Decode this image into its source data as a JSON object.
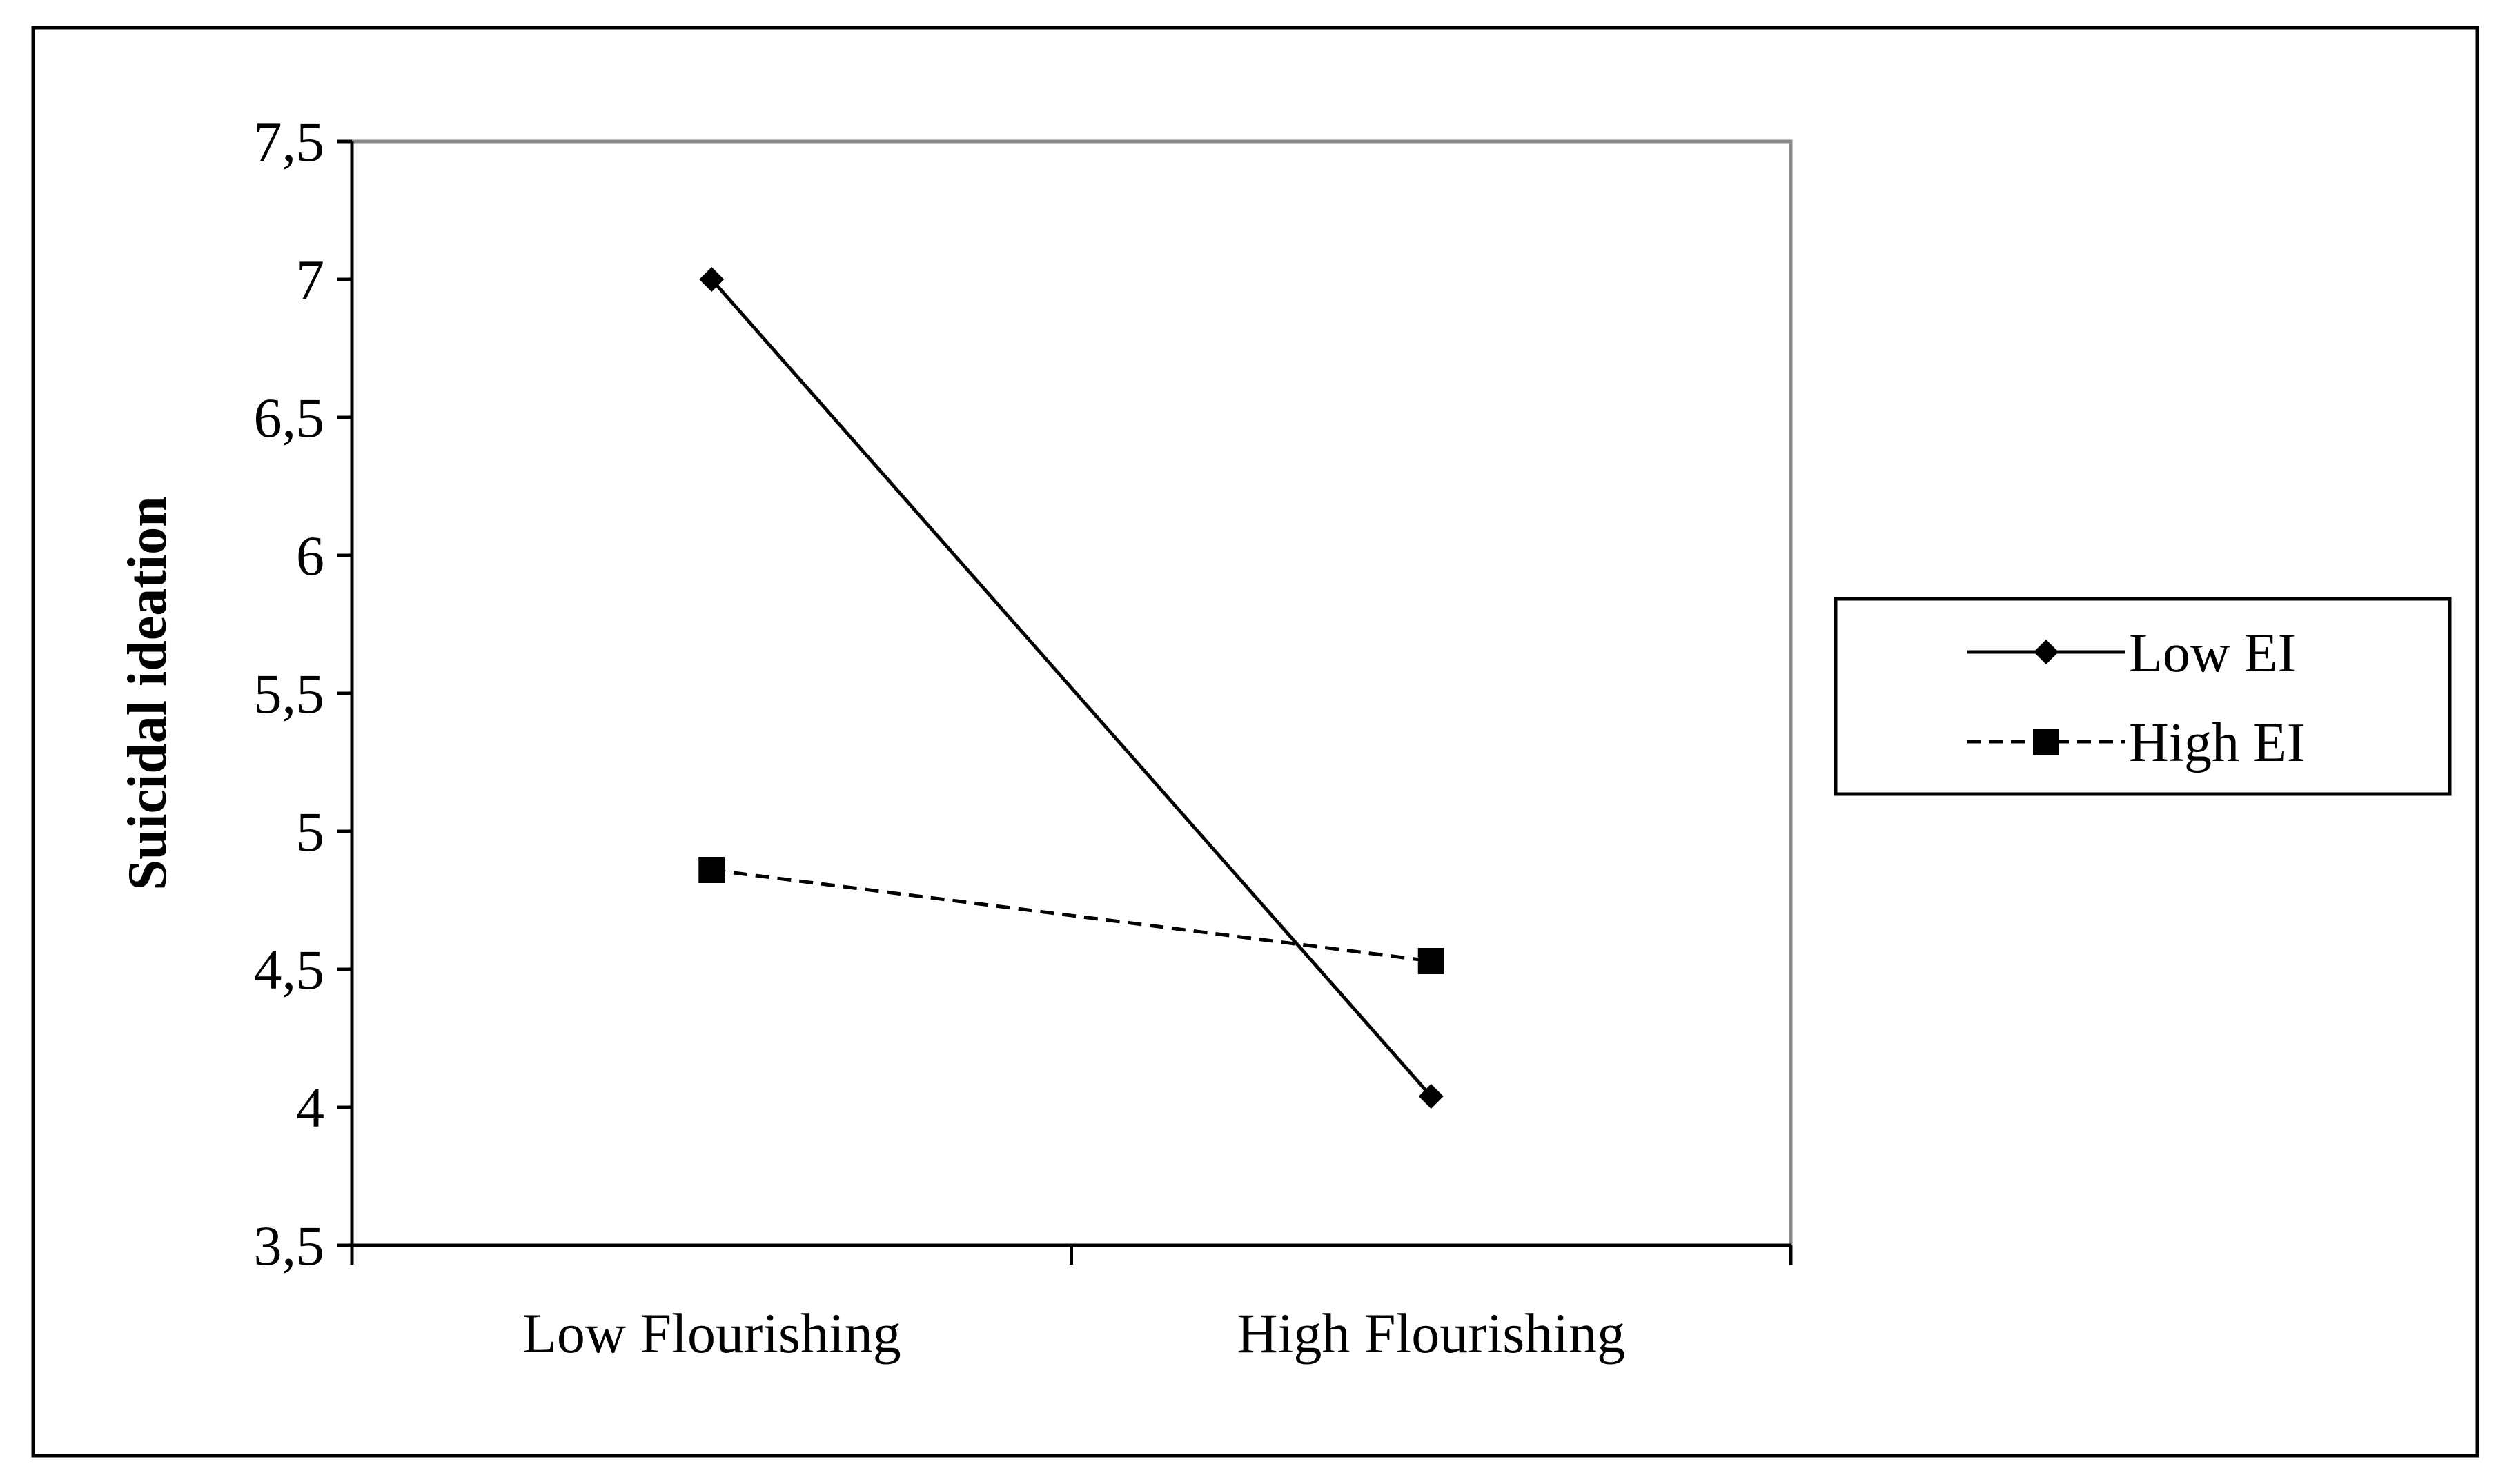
{
  "chart_data": {
    "type": "line",
    "title": "",
    "xlabel": "",
    "ylabel": "Suicidal ideation",
    "categories": [
      "Low Flourishing",
      "High Flourishing"
    ],
    "ylim": [
      3.5,
      7.5
    ],
    "yticks": [
      3.5,
      4,
      4.5,
      5,
      5.5,
      6,
      6.5,
      7,
      7.5
    ],
    "ytick_labels": [
      "3,5",
      "4",
      "4,5",
      "5",
      "5,5",
      "6",
      "6,5",
      "7",
      "7,5"
    ],
    "grid": false,
    "legend_placement": "right",
    "series": [
      {
        "name": "Low EI",
        "values": [
          7.0,
          4.04
        ],
        "line_style": "solid",
        "marker": "diamond",
        "color": "#000000"
      },
      {
        "name": "High EI",
        "values": [
          4.86,
          4.53
        ],
        "line_style": "dashed",
        "marker": "square",
        "color": "#000000"
      }
    ]
  }
}
